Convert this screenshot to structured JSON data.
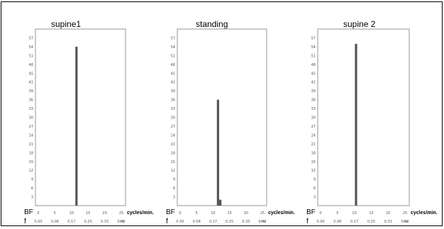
{
  "chart_data": [
    {
      "type": "bar",
      "title": "supine1",
      "ylim": [
        0,
        60
      ],
      "yticks": [
        "3",
        "6",
        "9",
        "12",
        "15",
        "18",
        "21",
        "24",
        "27",
        "30",
        "33",
        "36",
        "39",
        "42",
        "45",
        "48",
        "51",
        "54",
        "57"
      ],
      "xlim": [
        0,
        25
      ],
      "bf_ticks": [
        "0",
        "5",
        "10",
        "15",
        "20",
        "25"
      ],
      "f_ticks": [
        "0.00",
        "0.08",
        "0.17",
        "0.25",
        "0.33",
        "0.42"
      ],
      "x_label_rows": [
        "BF",
        "f"
      ],
      "x_unit": "cycles/min.",
      "f_unit": "Hz",
      "bars": [
        {
          "x": 11.5,
          "value": 54
        }
      ],
      "colors": {
        "bar": "#555555",
        "frame": "#bdbdbd"
      }
    },
    {
      "type": "bar",
      "title": "standing",
      "ylim": [
        0,
        60
      ],
      "yticks": [
        "3",
        "6",
        "9",
        "12",
        "15",
        "18",
        "21",
        "24",
        "27",
        "30",
        "33",
        "36",
        "39",
        "42",
        "45",
        "48",
        "51",
        "54",
        "57"
      ],
      "xlim": [
        0,
        25
      ],
      "bf_ticks": [
        "0",
        "5",
        "10",
        "15",
        "20",
        "25"
      ],
      "f_ticks": [
        "0.00",
        "0.08",
        "0.17",
        "0.25",
        "0.33",
        "0.42"
      ],
      "x_label_rows": [
        "BF",
        "f"
      ],
      "x_unit": "cycles/min.",
      "f_unit": "Hz",
      "bars": [
        {
          "x": 11.5,
          "value": 36
        },
        {
          "x": 12.2,
          "value": 2
        }
      ],
      "colors": {
        "bar": "#555555",
        "frame": "#bdbdbd"
      }
    },
    {
      "type": "bar",
      "title": "supine 2",
      "ylim": [
        0,
        60
      ],
      "yticks": [
        "3",
        "6",
        "9",
        "12",
        "15",
        "18",
        "21",
        "24",
        "27",
        "30",
        "33",
        "36",
        "39",
        "42",
        "45",
        "48",
        "51",
        "54",
        "57"
      ],
      "xlim": [
        0,
        25
      ],
      "bf_ticks": [
        "0",
        "5",
        "10",
        "15",
        "20",
        "25"
      ],
      "f_ticks": [
        "0.00",
        "0.08",
        "0.17",
        "0.25",
        "0.33",
        "0.42"
      ],
      "x_label_rows": [
        "BF",
        "f"
      ],
      "x_unit": "cycles/min.",
      "f_unit": "Hz",
      "bars": [
        {
          "x": 10.5,
          "value": 55
        }
      ],
      "colors": {
        "bar": "#555555",
        "frame": "#bdbdbd"
      }
    }
  ]
}
